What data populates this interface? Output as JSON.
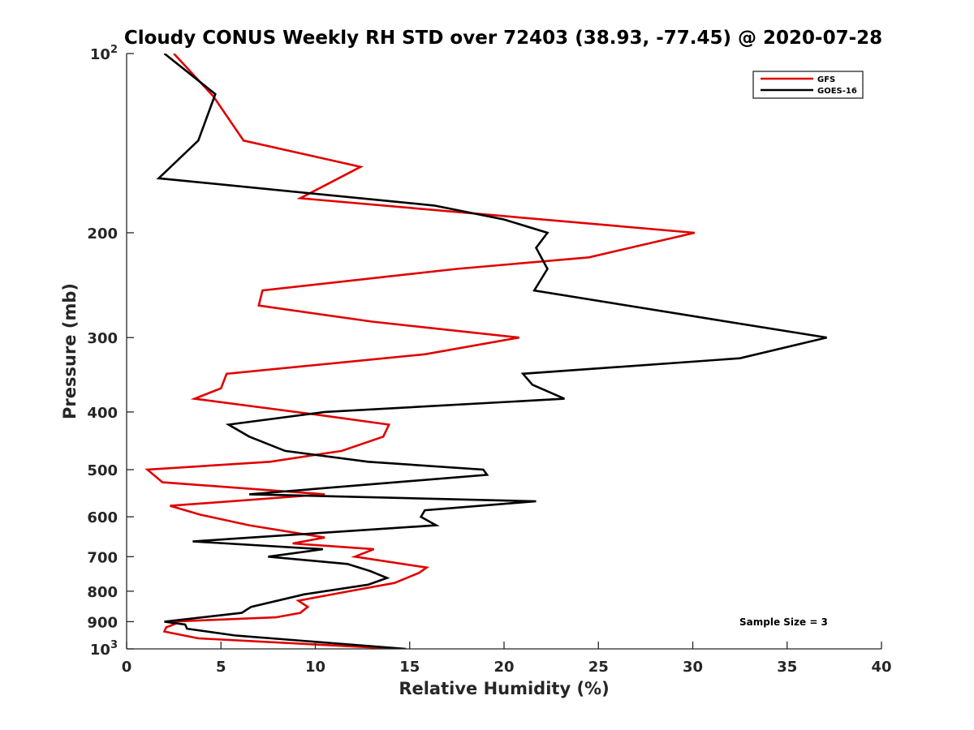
{
  "chart_data": {
    "type": "line",
    "title": "Cloudy CONUS Weekly RH STD over 72403 (38.93, -77.45) @ 2020-07-28",
    "xlabel": "Relative Humidity (%)",
    "ylabel": "Pressure (mb)",
    "xlim": [
      0,
      40
    ],
    "ylim": [
      100,
      1000
    ],
    "y_scale": "log",
    "y_reversed": true,
    "grid": false,
    "legend_position": "top-right",
    "x_ticks": [
      0,
      5,
      10,
      15,
      20,
      25,
      30,
      35,
      40
    ],
    "x_tick_labels": [
      "0",
      "5",
      "10",
      "15",
      "20",
      "25",
      "30",
      "35",
      "40"
    ],
    "y_ticks": [
      100,
      200,
      300,
      400,
      500,
      600,
      700,
      800,
      900,
      1000
    ],
    "y_tick_labels": [
      {
        "value": 100,
        "base": "10",
        "exp": "2"
      },
      {
        "value": 200,
        "base": "200",
        "exp": ""
      },
      {
        "value": 300,
        "base": "300",
        "exp": ""
      },
      {
        "value": 400,
        "base": "400",
        "exp": ""
      },
      {
        "value": 500,
        "base": "500",
        "exp": ""
      },
      {
        "value": 600,
        "base": "600",
        "exp": ""
      },
      {
        "value": 700,
        "base": "700",
        "exp": ""
      },
      {
        "value": 800,
        "base": "800",
        "exp": ""
      },
      {
        "value": 900,
        "base": "900",
        "exp": ""
      },
      {
        "value": 1000,
        "base": "10",
        "exp": "3"
      }
    ],
    "annotation": "Sample Size = 3",
    "series": [
      {
        "name": "GFS",
        "color": "#e00000",
        "points": [
          [
            2.5,
            100
          ],
          [
            4.6,
            118
          ],
          [
            6.2,
            140
          ],
          [
            12.4,
            155
          ],
          [
            9.2,
            175
          ],
          [
            30.1,
            200
          ],
          [
            24.5,
            220
          ],
          [
            17.5,
            230
          ],
          [
            7.2,
            250
          ],
          [
            7.0,
            265
          ],
          [
            13.0,
            282
          ],
          [
            20.8,
            300
          ],
          [
            15.8,
            320
          ],
          [
            5.3,
            345
          ],
          [
            5.0,
            365
          ],
          [
            3.6,
            380
          ],
          [
            10.3,
            405
          ],
          [
            13.9,
            420
          ],
          [
            13.6,
            440
          ],
          [
            11.4,
            465
          ],
          [
            7.6,
            485
          ],
          [
            1.1,
            500
          ],
          [
            1.9,
            525
          ],
          [
            10.5,
            550
          ],
          [
            2.3,
            575
          ],
          [
            3.9,
            595
          ],
          [
            6.5,
            620
          ],
          [
            10.5,
            650
          ],
          [
            8.8,
            665
          ],
          [
            13.1,
            680
          ],
          [
            12.1,
            700
          ],
          [
            15.9,
            730
          ],
          [
            15.5,
            745
          ],
          [
            14.2,
            775
          ],
          [
            11.8,
            800
          ],
          [
            9.1,
            830
          ],
          [
            9.6,
            850
          ],
          [
            9.2,
            870
          ],
          [
            7.9,
            885
          ],
          [
            2.3,
            900
          ],
          [
            2.5,
            910
          ],
          [
            2.1,
            920
          ],
          [
            2.0,
            935
          ],
          [
            3.8,
            960
          ],
          [
            14.5,
            1000
          ]
        ]
      },
      {
        "name": "GOES-16",
        "color": "#000000",
        "points": [
          [
            2.0,
            100
          ],
          [
            4.7,
            117
          ],
          [
            3.8,
            140
          ],
          [
            1.7,
            162
          ],
          [
            16.3,
            180
          ],
          [
            20.0,
            190
          ],
          [
            22.3,
            200
          ],
          [
            21.7,
            212
          ],
          [
            22.3,
            230
          ],
          [
            21.6,
            250
          ],
          [
            31.2,
            280
          ],
          [
            37.1,
            300
          ],
          [
            32.5,
            325
          ],
          [
            21.0,
            345
          ],
          [
            21.5,
            360
          ],
          [
            23.2,
            380
          ],
          [
            10.5,
            400
          ],
          [
            5.4,
            420
          ],
          [
            6.5,
            440
          ],
          [
            8.4,
            465
          ],
          [
            12.8,
            485
          ],
          [
            18.9,
            500
          ],
          [
            19.1,
            510
          ],
          [
            6.5,
            550
          ],
          [
            21.7,
            565
          ],
          [
            15.8,
            585
          ],
          [
            15.6,
            600
          ],
          [
            16.4,
            620
          ],
          [
            6.6,
            650
          ],
          [
            3.5,
            660
          ],
          [
            10.4,
            680
          ],
          [
            7.5,
            700
          ],
          [
            11.7,
            720
          ],
          [
            12.9,
            740
          ],
          [
            13.8,
            760
          ],
          [
            12.8,
            780
          ],
          [
            9.4,
            810
          ],
          [
            6.6,
            850
          ],
          [
            6.1,
            870
          ],
          [
            2.0,
            900
          ],
          [
            3.1,
            910
          ],
          [
            3.2,
            925
          ],
          [
            5.8,
            950
          ],
          [
            14.8,
            1000
          ]
        ]
      }
    ]
  }
}
